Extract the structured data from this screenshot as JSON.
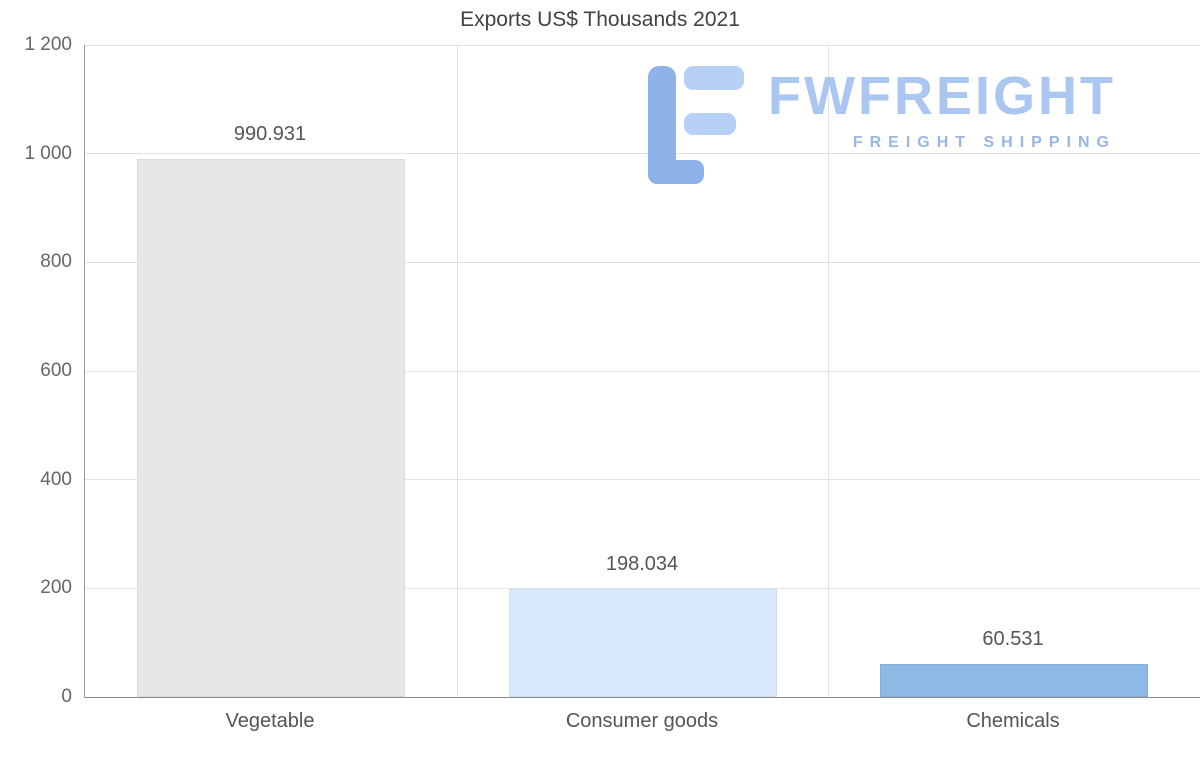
{
  "title": "Exports US$ Thousands 2021",
  "logo": {
    "name": "FWFREIGHT",
    "tagline": "FREIGHT SHIPPING",
    "color_dark": "#8fb3e9",
    "color_light": "#b7d0f6"
  },
  "chart_data": {
    "type": "bar",
    "title": "Exports US$ Thousands 2021",
    "categories": [
      "Vegetable",
      "Consumer goods",
      "Chemicals"
    ],
    "values": [
      990.931,
      198.034,
      60.531
    ],
    "value_labels": [
      "990.931",
      "198.034",
      "60.531"
    ],
    "bar_colors": [
      "#e7e7e7",
      "#d9eafc",
      "#8cbae4"
    ],
    "xlabel": "",
    "ylabel": "",
    "ylim": [
      0,
      1200
    ],
    "ytick_step": 200,
    "ytick_labels": [
      "0",
      "200",
      "400",
      "600",
      "800",
      "1 000",
      "1 200"
    ],
    "grid": true,
    "legend_position": "none",
    "grid_color": "#e2e2e2",
    "axis_color": "#8c8c8c",
    "label_color": "#555555"
  }
}
